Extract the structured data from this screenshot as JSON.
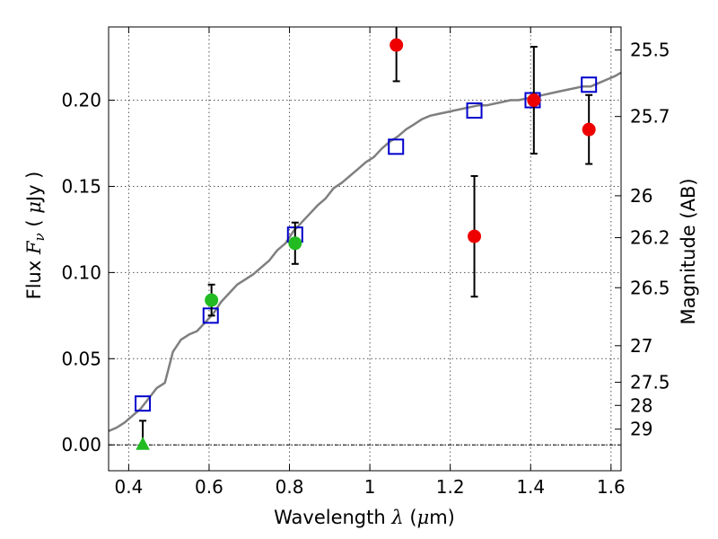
{
  "chart_data": {
    "type": "scatter",
    "title": "",
    "xlabel": {
      "text": "Wavelength",
      "symbol": "λ",
      "unit_open": " (",
      "unit_mu": "μ",
      "unit_rest": "m)"
    },
    "ylabel": {
      "text": "Flux",
      "symbol": "F",
      "symbol_sub": "ν",
      "unit_open": "( ",
      "unit_mu": "μ",
      "unit_rest": "Jy )"
    },
    "ylabel_right": "Magnitude (AB)",
    "xlim": [
      0.35,
      1.625
    ],
    "ylim": [
      -0.015,
      0.2425
    ],
    "x_ticks": [
      0.4,
      0.6,
      0.8,
      1.0,
      1.2,
      1.4,
      1.6
    ],
    "x_tick_labels": [
      "0.4",
      "0.6",
      "0.8",
      "1",
      "1.2",
      "1.4",
      "1.6"
    ],
    "y_ticks": [
      0.0,
      0.05,
      0.1,
      0.15,
      0.2
    ],
    "y_tick_labels": [
      "0.00",
      "0.05",
      "0.10",
      "0.15",
      "0.20"
    ],
    "right_ticks": [
      25.5,
      25.7,
      26,
      26.2,
      26.5,
      27,
      27.5,
      28,
      29
    ],
    "right_tick_labels": [
      "25.5",
      "25.7",
      "26",
      "26.2",
      "26.5",
      "27",
      "27.5",
      "28",
      "29"
    ],
    "ab_zero_point_ujy": 23.9,
    "grid": true,
    "colors": {
      "model": "#7f7f7f",
      "model_fluxes": "#0000cc",
      "green": "#22bb22",
      "red": "#ee0000",
      "errorbar": "#000000",
      "zero_line": "#000000"
    },
    "series": [
      {
        "marker": "line",
        "color": "#7f7f7f",
        "x": [
          0.35,
          0.37,
          0.39,
          0.41,
          0.43,
          0.45,
          0.47,
          0.49,
          0.51,
          0.53,
          0.55,
          0.57,
          0.59,
          0.61,
          0.63,
          0.65,
          0.67,
          0.69,
          0.71,
          0.73,
          0.75,
          0.77,
          0.79,
          0.81,
          0.83,
          0.85,
          0.87,
          0.89,
          0.91,
          0.93,
          0.95,
          0.97,
          0.99,
          1.01,
          1.03,
          1.05,
          1.07,
          1.09,
          1.11,
          1.13,
          1.15,
          1.17,
          1.19,
          1.21,
          1.23,
          1.25,
          1.27,
          1.29,
          1.31,
          1.33,
          1.35,
          1.37,
          1.39,
          1.41,
          1.43,
          1.45,
          1.47,
          1.49,
          1.51,
          1.53,
          1.55,
          1.57,
          1.59,
          1.61,
          1.625
        ],
        "y": [
          0.008,
          0.01,
          0.013,
          0.017,
          0.021,
          0.027,
          0.033,
          0.036,
          0.054,
          0.061,
          0.064,
          0.066,
          0.071,
          0.076,
          0.083,
          0.088,
          0.093,
          0.096,
          0.099,
          0.103,
          0.107,
          0.113,
          0.117,
          0.124,
          0.129,
          0.134,
          0.139,
          0.143,
          0.149,
          0.152,
          0.156,
          0.16,
          0.164,
          0.167,
          0.172,
          0.176,
          0.179,
          0.183,
          0.186,
          0.189,
          0.191,
          0.192,
          0.193,
          0.194,
          0.195,
          0.196,
          0.197,
          0.197,
          0.198,
          0.199,
          0.2,
          0.2,
          0.201,
          0.202,
          0.203,
          0.204,
          0.205,
          0.206,
          0.207,
          0.208,
          0.208,
          0.21,
          0.212,
          0.214,
          0.216
        ]
      },
      {
        "marker": "open-square",
        "color": "#0000cc",
        "x": [
          0.435,
          0.604,
          0.814,
          1.065,
          1.26,
          1.405,
          1.545
        ],
        "y": [
          0.024,
          0.075,
          0.122,
          0.173,
          0.194,
          0.2,
          0.209
        ]
      },
      {
        "marker": "circle",
        "color": "#22bb22",
        "x": [
          0.606,
          0.814
        ],
        "y": [
          0.084,
          0.117
        ],
        "yerr": [
          0.009,
          0.012
        ]
      },
      {
        "marker": "triangle",
        "color": "#22bb22",
        "x": [
          0.435
        ],
        "y": [
          0.0
        ],
        "yerr_up": [
          0.014
        ]
      },
      {
        "marker": "circle",
        "color": "#ee0000",
        "x": [
          1.066,
          1.26,
          1.408,
          1.545
        ],
        "y": [
          0.232,
          0.121,
          0.2,
          0.183
        ],
        "yerr": [
          0.021,
          0.035,
          0.031,
          0.02
        ]
      }
    ]
  }
}
